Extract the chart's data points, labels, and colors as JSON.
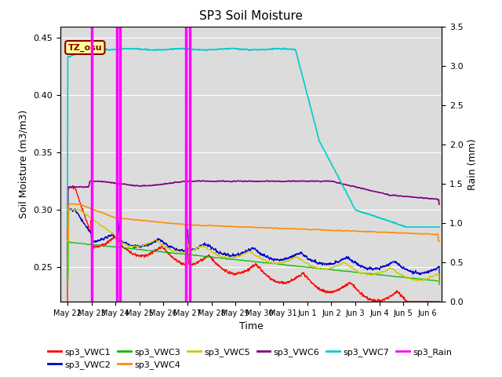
{
  "title": "SP3 Soil Moisture",
  "xlabel": "Time",
  "ylabel_left": "Soil Moisture (m3/m3)",
  "ylabel_right": "Rain (mm)",
  "ylim_left": [
    0.22,
    0.46
  ],
  "ylim_right": [
    0.0,
    3.5
  ],
  "annotation_label": "TZ_osu",
  "annotation_color": "#8B0000",
  "annotation_bg": "#FFFF99",
  "bg_color": "#DCDCDC",
  "series_colors": {
    "sp3_VWC1": "#FF0000",
    "sp3_VWC2": "#0000CD",
    "sp3_VWC3": "#00BB00",
    "sp3_VWC4": "#FF8C00",
    "sp3_VWC5": "#CCCC00",
    "sp3_VWC6": "#800080",
    "sp3_VWC7": "#00CCCC",
    "sp3_Rain": "#FF00FF"
  },
  "rain_spikes_day": [
    1.0,
    2.05,
    2.2,
    4.95,
    5.1
  ],
  "tick_positions": [
    0,
    1,
    2,
    3,
    4,
    5,
    6,
    7,
    8,
    9,
    10,
    11,
    12,
    13,
    14,
    15
  ],
  "tick_labels": [
    "May 22",
    "May 23",
    "May 24",
    "May 25",
    "May 26",
    "May 27",
    "May 28",
    "May 29",
    "May 30",
    "May 31",
    "Jun 1",
    "Jun 2",
    "Jun 3",
    "Jun 4",
    "Jun 5",
    "Jun 6"
  ]
}
